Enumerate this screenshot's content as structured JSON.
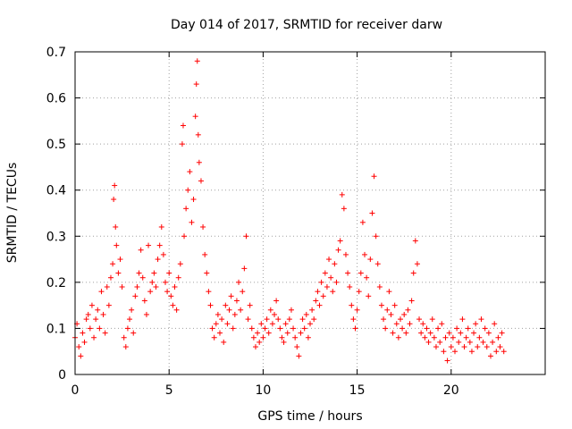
{
  "chart_data": {
    "type": "scatter",
    "title": "Day 014 of 2017, SRMTID for receiver darw",
    "xlabel": "GPS time / hours",
    "ylabel": "SRMTID / TECUs",
    "xlim": [
      0,
      25
    ],
    "ylim": [
      0,
      0.7
    ],
    "x_ticks": [
      0,
      5,
      10,
      15,
      20
    ],
    "x_tick_labels": [
      "0",
      "5",
      "10",
      "15",
      "20"
    ],
    "y_ticks": [
      0,
      0.1,
      0.2,
      0.3,
      0.4,
      0.5,
      0.6,
      0.7
    ],
    "y_tick_labels": [
      "0",
      "0.1",
      "0.2",
      "0.3",
      "0.4",
      "0.5",
      "0.6",
      "0.7"
    ],
    "grid": true,
    "marker": "+",
    "color": "#ff0000",
    "series": [
      {
        "name": "SRMTID",
        "points": [
          [
            0.0,
            0.08
          ],
          [
            0.1,
            0.11
          ],
          [
            0.2,
            0.06
          ],
          [
            0.3,
            0.04
          ],
          [
            0.4,
            0.09
          ],
          [
            0.5,
            0.07
          ],
          [
            0.6,
            0.12
          ],
          [
            0.7,
            0.13
          ],
          [
            0.8,
            0.1
          ],
          [
            0.9,
            0.15
          ],
          [
            1.0,
            0.08
          ],
          [
            1.1,
            0.12
          ],
          [
            1.2,
            0.14
          ],
          [
            1.3,
            0.1
          ],
          [
            1.4,
            0.18
          ],
          [
            1.5,
            0.13
          ],
          [
            1.6,
            0.09
          ],
          [
            1.7,
            0.19
          ],
          [
            1.8,
            0.15
          ],
          [
            1.9,
            0.21
          ],
          [
            2.0,
            0.24
          ],
          [
            2.05,
            0.38
          ],
          [
            2.1,
            0.41
          ],
          [
            2.15,
            0.32
          ],
          [
            2.2,
            0.28
          ],
          [
            2.3,
            0.22
          ],
          [
            2.4,
            0.25
          ],
          [
            2.5,
            0.19
          ],
          [
            2.6,
            0.08
          ],
          [
            2.7,
            0.06
          ],
          [
            2.8,
            0.1
          ],
          [
            2.9,
            0.12
          ],
          [
            3.0,
            0.14
          ],
          [
            3.1,
            0.09
          ],
          [
            3.2,
            0.17
          ],
          [
            3.3,
            0.19
          ],
          [
            3.4,
            0.22
          ],
          [
            3.5,
            0.27
          ],
          [
            3.6,
            0.21
          ],
          [
            3.7,
            0.16
          ],
          [
            3.8,
            0.13
          ],
          [
            3.9,
            0.28
          ],
          [
            4.0,
            0.18
          ],
          [
            4.1,
            0.2
          ],
          [
            4.2,
            0.22
          ],
          [
            4.3,
            0.19
          ],
          [
            4.4,
            0.25
          ],
          [
            4.5,
            0.28
          ],
          [
            4.6,
            0.32
          ],
          [
            4.7,
            0.26
          ],
          [
            4.8,
            0.2
          ],
          [
            4.9,
            0.18
          ],
          [
            5.0,
            0.22
          ],
          [
            5.1,
            0.17
          ],
          [
            5.2,
            0.15
          ],
          [
            5.3,
            0.19
          ],
          [
            5.4,
            0.14
          ],
          [
            5.5,
            0.21
          ],
          [
            5.6,
            0.24
          ],
          [
            5.7,
            0.5
          ],
          [
            5.75,
            0.54
          ],
          [
            5.8,
            0.3
          ],
          [
            5.9,
            0.36
          ],
          [
            6.0,
            0.4
          ],
          [
            6.1,
            0.44
          ],
          [
            6.2,
            0.33
          ],
          [
            6.3,
            0.38
          ],
          [
            6.4,
            0.56
          ],
          [
            6.45,
            0.63
          ],
          [
            6.5,
            0.68
          ],
          [
            6.55,
            0.52
          ],
          [
            6.6,
            0.46
          ],
          [
            6.7,
            0.42
          ],
          [
            6.8,
            0.32
          ],
          [
            6.9,
            0.26
          ],
          [
            7.0,
            0.22
          ],
          [
            7.1,
            0.18
          ],
          [
            7.2,
            0.15
          ],
          [
            7.3,
            0.1
          ],
          [
            7.4,
            0.08
          ],
          [
            7.5,
            0.11
          ],
          [
            7.6,
            0.13
          ],
          [
            7.7,
            0.09
          ],
          [
            7.8,
            0.12
          ],
          [
            7.9,
            0.07
          ],
          [
            8.0,
            0.15
          ],
          [
            8.1,
            0.11
          ],
          [
            8.2,
            0.14
          ],
          [
            8.3,
            0.17
          ],
          [
            8.4,
            0.1
          ],
          [
            8.5,
            0.13
          ],
          [
            8.6,
            0.16
          ],
          [
            8.7,
            0.2
          ],
          [
            8.8,
            0.14
          ],
          [
            8.9,
            0.18
          ],
          [
            9.0,
            0.23
          ],
          [
            9.1,
            0.3
          ],
          [
            9.2,
            0.12
          ],
          [
            9.3,
            0.15
          ],
          [
            9.4,
            0.1
          ],
          [
            9.5,
            0.08
          ],
          [
            9.6,
            0.06
          ],
          [
            9.7,
            0.09
          ],
          [
            9.8,
            0.07
          ],
          [
            9.9,
            0.11
          ],
          [
            10.0,
            0.08
          ],
          [
            10.1,
            0.1
          ],
          [
            10.2,
            0.12
          ],
          [
            10.3,
            0.09
          ],
          [
            10.4,
            0.14
          ],
          [
            10.5,
            0.11
          ],
          [
            10.6,
            0.13
          ],
          [
            10.7,
            0.16
          ],
          [
            10.8,
            0.12
          ],
          [
            10.9,
            0.1
          ],
          [
            11.0,
            0.08
          ],
          [
            11.1,
            0.07
          ],
          [
            11.2,
            0.11
          ],
          [
            11.3,
            0.09
          ],
          [
            11.4,
            0.12
          ],
          [
            11.5,
            0.14
          ],
          [
            11.6,
            0.1
          ],
          [
            11.7,
            0.08
          ],
          [
            11.8,
            0.06
          ],
          [
            11.9,
            0.04
          ],
          [
            12.0,
            0.09
          ],
          [
            12.1,
            0.12
          ],
          [
            12.2,
            0.1
          ],
          [
            12.3,
            0.13
          ],
          [
            12.4,
            0.08
          ],
          [
            12.5,
            0.11
          ],
          [
            12.6,
            0.14
          ],
          [
            12.7,
            0.12
          ],
          [
            12.8,
            0.16
          ],
          [
            12.9,
            0.18
          ],
          [
            13.0,
            0.15
          ],
          [
            13.1,
            0.2
          ],
          [
            13.2,
            0.17
          ],
          [
            13.3,
            0.22
          ],
          [
            13.4,
            0.19
          ],
          [
            13.5,
            0.25
          ],
          [
            13.6,
            0.21
          ],
          [
            13.7,
            0.18
          ],
          [
            13.8,
            0.24
          ],
          [
            13.9,
            0.2
          ],
          [
            14.0,
            0.27
          ],
          [
            14.1,
            0.29
          ],
          [
            14.2,
            0.39
          ],
          [
            14.3,
            0.36
          ],
          [
            14.4,
            0.26
          ],
          [
            14.5,
            0.22
          ],
          [
            14.6,
            0.19
          ],
          [
            14.7,
            0.15
          ],
          [
            14.8,
            0.12
          ],
          [
            14.9,
            0.1
          ],
          [
            15.0,
            0.14
          ],
          [
            15.1,
            0.18
          ],
          [
            15.2,
            0.22
          ],
          [
            15.3,
            0.33
          ],
          [
            15.4,
            0.26
          ],
          [
            15.5,
            0.21
          ],
          [
            15.6,
            0.17
          ],
          [
            15.7,
            0.25
          ],
          [
            15.8,
            0.35
          ],
          [
            15.9,
            0.43
          ],
          [
            16.0,
            0.3
          ],
          [
            16.1,
            0.24
          ],
          [
            16.2,
            0.19
          ],
          [
            16.3,
            0.15
          ],
          [
            16.4,
            0.12
          ],
          [
            16.5,
            0.1
          ],
          [
            16.6,
            0.14
          ],
          [
            16.7,
            0.18
          ],
          [
            16.8,
            0.13
          ],
          [
            16.9,
            0.09
          ],
          [
            17.0,
            0.15
          ],
          [
            17.1,
            0.11
          ],
          [
            17.2,
            0.08
          ],
          [
            17.3,
            0.12
          ],
          [
            17.4,
            0.1
          ],
          [
            17.5,
            0.13
          ],
          [
            17.6,
            0.09
          ],
          [
            17.7,
            0.14
          ],
          [
            17.8,
            0.11
          ],
          [
            17.9,
            0.16
          ],
          [
            18.0,
            0.22
          ],
          [
            18.1,
            0.29
          ],
          [
            18.2,
            0.24
          ],
          [
            18.3,
            0.12
          ],
          [
            18.4,
            0.09
          ],
          [
            18.5,
            0.11
          ],
          [
            18.6,
            0.08
          ],
          [
            18.7,
            0.1
          ],
          [
            18.8,
            0.07
          ],
          [
            18.9,
            0.09
          ],
          [
            19.0,
            0.12
          ],
          [
            19.1,
            0.08
          ],
          [
            19.2,
            0.06
          ],
          [
            19.3,
            0.1
          ],
          [
            19.4,
            0.07
          ],
          [
            19.5,
            0.11
          ],
          [
            19.6,
            0.05
          ],
          [
            19.7,
            0.08
          ],
          [
            19.8,
            0.03
          ],
          [
            19.9,
            0.09
          ],
          [
            20.0,
            0.06
          ],
          [
            20.1,
            0.08
          ],
          [
            20.2,
            0.05
          ],
          [
            20.3,
            0.1
          ],
          [
            20.4,
            0.07
          ],
          [
            20.5,
            0.09
          ],
          [
            20.6,
            0.12
          ],
          [
            20.7,
            0.06
          ],
          [
            20.8,
            0.08
          ],
          [
            20.9,
            0.1
          ],
          [
            21.0,
            0.07
          ],
          [
            21.1,
            0.05
          ],
          [
            21.2,
            0.09
          ],
          [
            21.3,
            0.11
          ],
          [
            21.4,
            0.06
          ],
          [
            21.5,
            0.08
          ],
          [
            21.6,
            0.12
          ],
          [
            21.7,
            0.07
          ],
          [
            21.8,
            0.1
          ],
          [
            21.9,
            0.06
          ],
          [
            22.0,
            0.09
          ],
          [
            22.1,
            0.04
          ],
          [
            22.2,
            0.07
          ],
          [
            22.3,
            0.11
          ],
          [
            22.4,
            0.05
          ],
          [
            22.5,
            0.08
          ],
          [
            22.6,
            0.06
          ],
          [
            22.7,
            0.09
          ],
          [
            22.8,
            0.05
          ]
        ]
      }
    ]
  }
}
